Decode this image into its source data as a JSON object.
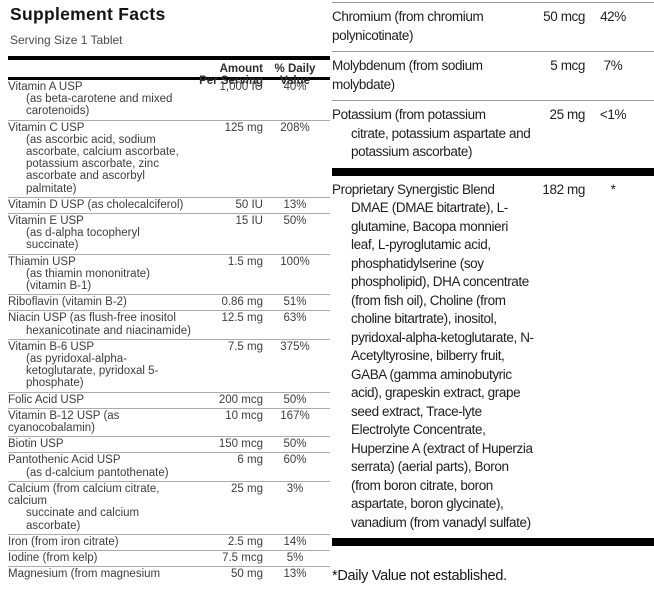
{
  "title": "Supplement Facts",
  "serving_size": "Serving Size 1 Tablet",
  "header": {
    "amount_line1": "Amount",
    "amount_line2": "Per Serving",
    "dv_line1": "% Daily",
    "dv_line2": "Value"
  },
  "left_table": {
    "rows": [
      {
        "lines": [
          {
            "text": "Vitamin A USP",
            "indent": false
          },
          {
            "text": "(as beta-carotene and mixed",
            "indent": true
          },
          {
            "text": "carotenoids)",
            "indent": true
          }
        ],
        "amount": "1,000 IU",
        "dv": "40%"
      },
      {
        "lines": [
          {
            "text": "Vitamin C USP",
            "indent": false
          },
          {
            "text": "(as ascorbic acid, sodium",
            "indent": true
          },
          {
            "text": "ascorbate, calcium ascorbate,",
            "indent": true
          },
          {
            "text": "potassium ascorbate, zinc",
            "indent": true
          },
          {
            "text": "ascorbate and ascorbyl",
            "indent": true
          },
          {
            "text": "palmitate)",
            "indent": true
          }
        ],
        "amount": "125 mg",
        "dv": "208%"
      },
      {
        "lines": [
          {
            "text": "Vitamin D USP (as cholecalciferol)",
            "indent": false
          }
        ],
        "amount": "50 IU",
        "dv": "13%"
      },
      {
        "lines": [
          {
            "text": "Vitamin E USP",
            "indent": false
          },
          {
            "text": "(as d-alpha tocopheryl",
            "indent": true
          },
          {
            "text": "succinate)",
            "indent": true
          }
        ],
        "amount": "15 IU",
        "dv": "50%"
      },
      {
        "lines": [
          {
            "text": "Thiamin USP",
            "indent": false
          },
          {
            "text": "(as thiamin mononitrate)",
            "indent": true
          },
          {
            "text": "(vitamin B-1)",
            "indent": true
          }
        ],
        "amount": "1.5 mg",
        "dv": "100%"
      },
      {
        "lines": [
          {
            "text": "Riboflavin (vitamin B-2)",
            "indent": false
          }
        ],
        "amount": "0.86 mg",
        "dv": "51%"
      },
      {
        "lines": [
          {
            "text": "Niacin USP (as flush-free inositol",
            "indent": false
          },
          {
            "text": "hexanicotinate and niacinamide)",
            "indent": true
          }
        ],
        "amount": "12.5 mg",
        "dv": "63%"
      },
      {
        "lines": [
          {
            "text": "Vitamin B-6 USP",
            "indent": false
          },
          {
            "text": "(as pyridoxal-alpha-",
            "indent": true
          },
          {
            "text": "ketoglutarate, pyridoxal 5-",
            "indent": true
          },
          {
            "text": "phosphate)",
            "indent": true
          }
        ],
        "amount": "7.5 mg",
        "dv": "375%"
      },
      {
        "lines": [
          {
            "text": "Folic Acid USP",
            "indent": false
          }
        ],
        "amount": "200 mcg",
        "dv": "50%"
      },
      {
        "lines": [
          {
            "text": "Vitamin B-12 USP (as",
            "indent": false
          },
          {
            "text": "cyanocobalamin)",
            "indent": false
          }
        ],
        "amount": "10 mcg",
        "dv": "167%"
      },
      {
        "lines": [
          {
            "text": "Biotin USP",
            "indent": false
          }
        ],
        "amount": "150 mcg",
        "dv": "50%"
      },
      {
        "lines": [
          {
            "text": "Pantothenic Acid USP",
            "indent": false
          },
          {
            "text": "(as d-calcium pantothenate)",
            "indent": true
          }
        ],
        "amount": "6 mg",
        "dv": "60%"
      },
      {
        "lines": [
          {
            "text": "Calcium (from calcium citrate,",
            "indent": false
          },
          {
            "text": "calcium",
            "indent": false
          },
          {
            "text": "succinate and calcium",
            "indent": true
          },
          {
            "text": "ascorbate)",
            "indent": true
          }
        ],
        "amount": "25 mg",
        "dv": "3%"
      },
      {
        "lines": [
          {
            "text": "Iron (from iron citrate)",
            "indent": false
          }
        ],
        "amount": "2.5 mg",
        "dv": "14%"
      },
      {
        "lines": [
          {
            "text": "Iodine (from kelp)",
            "indent": false
          }
        ],
        "amount": "7.5 mcg",
        "dv": "5%"
      },
      {
        "lines": [
          {
            "text": "Magnesium (from magnesium",
            "indent": false
          }
        ],
        "amount": "50 mg",
        "dv": "13%"
      }
    ]
  },
  "right_table": {
    "rows": [
      {
        "lines": [
          {
            "text": "Chromium (from chromium",
            "indent": false
          },
          {
            "text": "polynicotinate)",
            "indent": false
          }
        ],
        "amount": "50 mcg",
        "dv": "42%",
        "sep_after": "thin"
      },
      {
        "lines": [
          {
            "text": "Molybdenum (from sodium",
            "indent": false
          },
          {
            "text": "molybdate)",
            "indent": false
          }
        ],
        "amount": "5 mcg",
        "dv": "7%",
        "sep_after": "thin"
      },
      {
        "lines": [
          {
            "text": "Potassium (from potassium",
            "indent": false
          },
          {
            "text": "citrate, potassium aspartate and",
            "indent": true
          },
          {
            "text": "potassium ascorbate)",
            "indent": true
          }
        ],
        "amount": "25 mg",
        "dv": "<1%",
        "sep_after": "thick"
      },
      {
        "lines": [
          {
            "text": "Proprietary Synergistic Blend",
            "indent": false
          },
          {
            "text": "DMAE (DMAE bitartrate), L-",
            "indent": true
          },
          {
            "text": "glutamine, Bacopa monnieri",
            "indent": true
          },
          {
            "text": "leaf, L-pyroglutamic acid,",
            "indent": true
          },
          {
            "text": "phosphatidylserine (soy",
            "indent": true
          },
          {
            "text": "phospholipid), DHA concentrate",
            "indent": true
          },
          {
            "text": "(from fish oil), Choline (from",
            "indent": true
          },
          {
            "text": "choline bitartrate), inositol,",
            "indent": true
          },
          {
            "text": "pyridoxal-alpha-ketoglutarate, N-",
            "indent": true
          },
          {
            "text": "Acetyltyrosine, bilberry fruit,",
            "indent": true
          },
          {
            "text": "GABA (gamma aminobutyric",
            "indent": true
          },
          {
            "text": "acid), grapeskin extract, grape",
            "indent": true
          },
          {
            "text": "seed extract, Trace-lyte",
            "indent": true
          },
          {
            "text": "Electrolyte Concentrate,",
            "indent": true
          },
          {
            "text": "Huperzine A (extract of Huperzia",
            "indent": true
          },
          {
            "text": "serrata) (aerial parts), Boron",
            "indent": true
          },
          {
            "text": "(from boron citrate, boron",
            "indent": true
          },
          {
            "text": "aspartate, boron glycinate),",
            "indent": true
          },
          {
            "text": "vanadium (from vanadyl sulfate)",
            "indent": true
          }
        ],
        "amount": "182 mg",
        "dv": "*",
        "sep_after": "thick"
      }
    ]
  },
  "footnote": "*Daily Value not established.",
  "colors": {
    "rule_black": "#000000",
    "rule_gray": "#9a9a9a",
    "text_left": "#3d3d3d",
    "text_right": "#1e1e1e",
    "background": "#ffffff"
  }
}
